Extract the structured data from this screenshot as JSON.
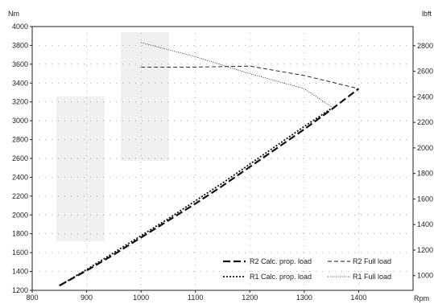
{
  "chart_data": {
    "type": "line",
    "xlabel": "Rpm",
    "ylabel_left": "Nm",
    "ylabel_right": "lbft",
    "xlim": [
      800,
      1500
    ],
    "ylim": [
      1200,
      4000
    ],
    "xticks": [
      800,
      900,
      1000,
      1100,
      1200,
      1300,
      1400
    ],
    "yticks": [
      1200,
      1400,
      1600,
      1800,
      2000,
      2200,
      2400,
      2600,
      2800,
      3000,
      3200,
      3400,
      3600,
      3800,
      4000
    ],
    "y2lim": [
      885,
      2950
    ],
    "y2ticks": [
      1000,
      1200,
      1400,
      1600,
      1800,
      2000,
      2200,
      2400,
      2600,
      2800
    ],
    "grid": "dotted",
    "legend_position": "bottom-right",
    "series": [
      {
        "name": "R2 Calc. prop. load",
        "style": "long-dash",
        "x": [
          850,
          900,
          950,
          1000,
          1050,
          1100,
          1150,
          1200,
          1250,
          1300,
          1350,
          1400
        ],
        "y": [
          1250,
          1410,
          1580,
          1760,
          1940,
          2120,
          2310,
          2510,
          2710,
          2910,
          3120,
          3340
        ]
      },
      {
        "name": "R2 Full load",
        "style": "dashed",
        "x": [
          1000,
          1100,
          1200,
          1300,
          1400
        ],
        "y": [
          3570,
          3570,
          3580,
          3480,
          3340
        ]
      },
      {
        "name": "R1 Calc. prop. load",
        "style": "dotted",
        "x": [
          850,
          900,
          950,
          1000,
          1050,
          1100,
          1150,
          1200,
          1250,
          1300,
          1350
        ],
        "y": [
          1250,
          1420,
          1600,
          1780,
          1960,
          2150,
          2340,
          2540,
          2740,
          2940,
          3130
        ]
      },
      {
        "name": "R1 Full load",
        "style": "fine-dotted",
        "x": [
          1000,
          1100,
          1200,
          1300,
          1350
        ],
        "y": [
          3830,
          3680,
          3500,
          3340,
          3150
        ]
      }
    ]
  }
}
